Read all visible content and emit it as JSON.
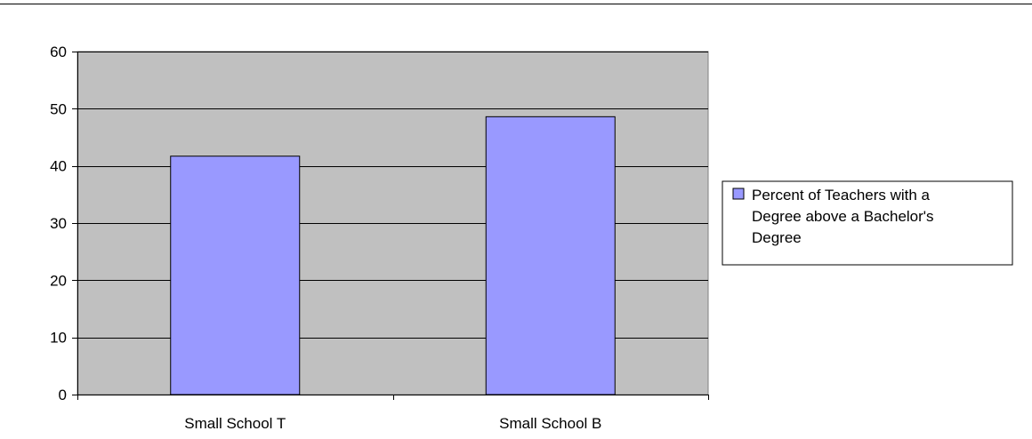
{
  "chart_data": {
    "type": "bar",
    "categories": [
      "Small School T",
      "Small School B"
    ],
    "series": [
      {
        "name": "Percent of Teachers with a Degree above a Bachelor's Degree",
        "values": [
          41.7,
          48.6
        ],
        "color": "#9999ff"
      }
    ],
    "title": "",
    "xlabel": "",
    "ylabel": "",
    "ylim": [
      0,
      60
    ],
    "yticks": [
      0,
      10,
      20,
      30,
      40,
      50,
      60
    ],
    "grid": true,
    "legend_position": "right",
    "legend_lines": [
      "Percent of Teachers with a",
      "Degree above a Bachelor's",
      "Degree"
    ],
    "plot_background": "#c0c0c0"
  }
}
